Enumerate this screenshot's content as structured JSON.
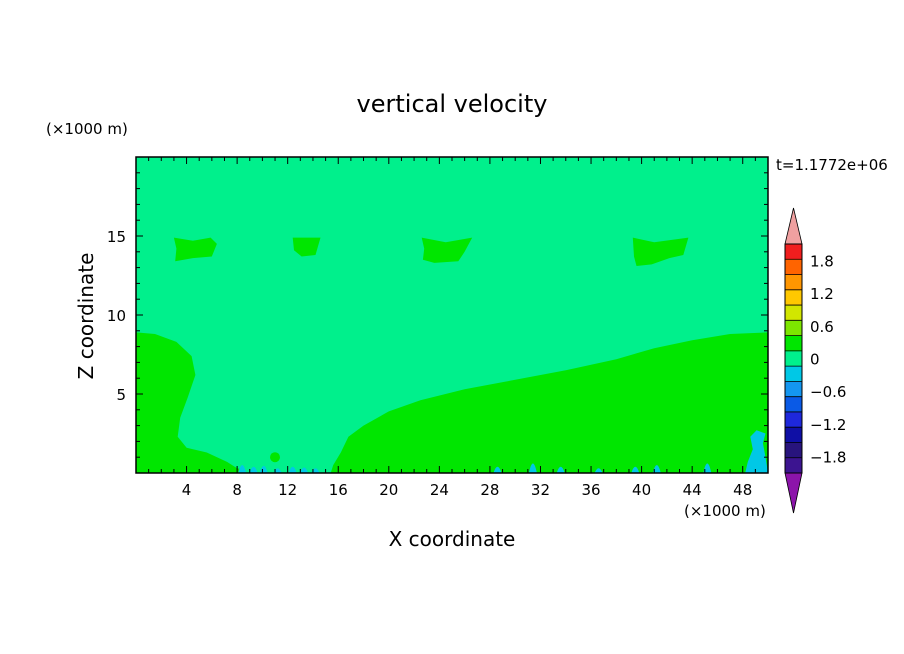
{
  "chart_data": {
    "type": "heatmap",
    "title": "vertical velocity",
    "time_label": "t=1.1772e+06",
    "xlabel": "X coordinate",
    "ylabel": "Z coordinate",
    "x_unit": "(×1000 m)",
    "y_unit": "(×1000 m)",
    "xlim": [
      0,
      50
    ],
    "ylim": [
      0,
      20
    ],
    "x_ticks": [
      4,
      8,
      12,
      16,
      20,
      24,
      28,
      32,
      36,
      40,
      44,
      48
    ],
    "y_ticks": [
      5,
      10,
      15
    ],
    "colorbar": {
      "levels": [
        -2.1,
        -1.8,
        -1.5,
        -1.2,
        -0.9,
        -0.6,
        -0.3,
        0,
        0.3,
        0.6,
        0.9,
        1.2,
        1.5,
        1.8,
        2.1
      ],
      "tick_labels": [
        "1.8",
        "1.2",
        "0.6",
        "0",
        "−0.6",
        "−1.2",
        "−1.8"
      ],
      "tick_values": [
        1.8,
        1.2,
        0.6,
        0,
        -0.6,
        -1.2,
        -1.8
      ],
      "colors": [
        "#3c1490",
        "#28147d",
        "#0f0fa5",
        "#1e28dc",
        "#0a5ae6",
        "#1496f0",
        "#00c8e6",
        "#00f08c",
        "#00e600",
        "#7de600",
        "#d2e600",
        "#ffc800",
        "#ff9600",
        "#ff6400",
        "#f01e1e"
      ],
      "under_color": "#8c14aa",
      "over_color": "#f0a0a0"
    },
    "field": {
      "background_value": 0,
      "background_color": "#00f08c",
      "positive_color": "#00e600",
      "negative_color": "#00c8e6",
      "lower_left_region": [
        [
          0,
          8.9
        ],
        [
          1.5,
          8.8
        ],
        [
          3.2,
          8.3
        ],
        [
          4.4,
          7.4
        ],
        [
          4.7,
          6.2
        ],
        [
          4.1,
          4.8
        ],
        [
          3.5,
          3.5
        ],
        [
          3.3,
          2.3
        ],
        [
          4.0,
          1.6
        ],
        [
          5.6,
          1.3
        ],
        [
          7.2,
          0.7
        ],
        [
          8.0,
          0.3
        ],
        [
          8.6,
          0.2
        ],
        [
          8.6,
          0
        ],
        [
          0,
          0
        ]
      ],
      "lower_right_region": [
        [
          15.4,
          0
        ],
        [
          15.6,
          0.5
        ],
        [
          16.2,
          1.3
        ],
        [
          16.8,
          2.3
        ],
        [
          18.0,
          3.0
        ],
        [
          20.0,
          3.9
        ],
        [
          22.5,
          4.6
        ],
        [
          26.0,
          5.3
        ],
        [
          30.0,
          5.9
        ],
        [
          34.0,
          6.5
        ],
        [
          38.0,
          7.2
        ],
        [
          41.0,
          7.9
        ],
        [
          44.0,
          8.4
        ],
        [
          47.0,
          8.8
        ],
        [
          50,
          8.9
        ],
        [
          50,
          0
        ]
      ],
      "upper_positive_cells": [
        [
          [
            3.0,
            14.9
          ],
          [
            4.5,
            14.7
          ],
          [
            5.9,
            14.9
          ],
          [
            6.4,
            14.5
          ],
          [
            6.0,
            13.7
          ],
          [
            4.5,
            13.6
          ],
          [
            3.1,
            13.4
          ],
          [
            3.2,
            14.2
          ]
        ],
        [
          [
            12.4,
            14.9
          ],
          [
            14.6,
            14.9
          ],
          [
            14.2,
            13.8
          ],
          [
            13.1,
            13.7
          ],
          [
            12.5,
            14.1
          ]
        ],
        [
          [
            22.6,
            14.9
          ],
          [
            24.5,
            14.6
          ],
          [
            26.6,
            14.9
          ],
          [
            26.0,
            14.0
          ],
          [
            25.5,
            13.4
          ],
          [
            23.6,
            13.3
          ],
          [
            22.7,
            13.5
          ],
          [
            22.8,
            14.2
          ]
        ],
        [
          [
            39.3,
            14.9
          ],
          [
            41.0,
            14.6
          ],
          [
            43.7,
            14.9
          ],
          [
            43.3,
            13.8
          ],
          [
            42.2,
            13.6
          ],
          [
            40.8,
            13.2
          ],
          [
            39.6,
            13.1
          ],
          [
            39.4,
            13.7
          ]
        ]
      ],
      "near_surface_negative_patches": [
        [
          8.4,
          0.5
        ],
        [
          9.3,
          0.4
        ],
        [
          10.1,
          0.45
        ],
        [
          11.2,
          0.3
        ],
        [
          12.4,
          0.4
        ],
        [
          13.3,
          0.35
        ],
        [
          14.2,
          0.3
        ],
        [
          28.6,
          0.4
        ],
        [
          31.4,
          0.6
        ],
        [
          33.6,
          0.4
        ],
        [
          36.6,
          0.3
        ],
        [
          39.5,
          0.4
        ],
        [
          41.2,
          0.5
        ],
        [
          45.2,
          0.6
        ],
        [
          48.7,
          0.9
        ]
      ],
      "right_edge_negative_plume": [
        [
          48.2,
          0
        ],
        [
          48.4,
          0.7
        ],
        [
          48.8,
          1.5
        ],
        [
          48.6,
          2.3
        ],
        [
          49.1,
          2.7
        ],
        [
          49.8,
          2.5
        ],
        [
          49.6,
          1.9
        ],
        [
          49.8,
          1.0
        ],
        [
          50,
          0
        ]
      ],
      "small_positive_blob": [
        11.0,
        1.0
      ]
    }
  }
}
